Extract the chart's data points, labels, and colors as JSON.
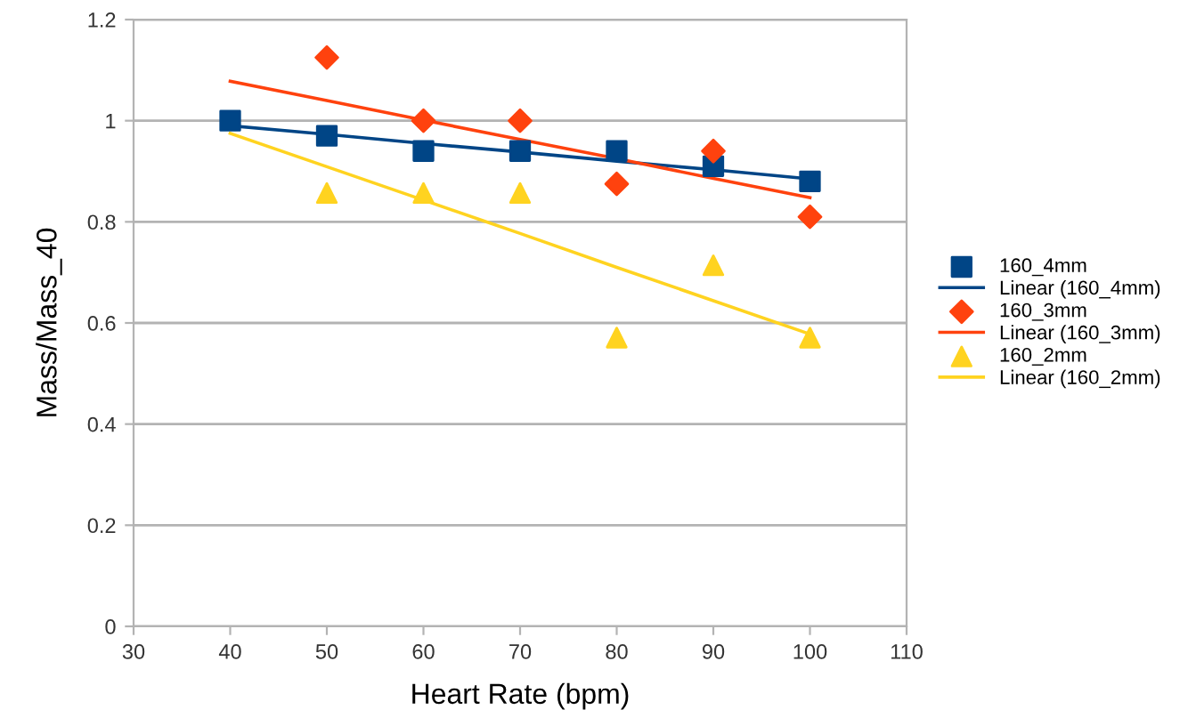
{
  "chart_data": {
    "type": "scatter",
    "xlabel": "Heart Rate (bpm)",
    "ylabel": "Mass/Mass_40",
    "x": [
      40,
      50,
      60,
      70,
      80,
      90,
      100
    ],
    "xlim": [
      30,
      110
    ],
    "xticks": [
      30,
      40,
      50,
      60,
      70,
      80,
      90,
      100,
      110
    ],
    "ylim": [
      0,
      1.2
    ],
    "yticks": [
      0,
      0.2,
      0.4,
      0.6,
      0.8,
      1,
      1.2
    ],
    "grid": "y",
    "legend": "right",
    "series": [
      {
        "name": "160_4mm",
        "marker": "square",
        "color": "#004586",
        "values": [
          1.0,
          0.97,
          0.94,
          0.94,
          0.94,
          0.91,
          0.88
        ]
      },
      {
        "name": "Linear (160_4mm)",
        "type": "line",
        "marker": "none",
        "color": "#004586",
        "values": [
          0.99,
          0.973,
          0.955,
          0.938,
          0.92,
          0.903,
          0.885
        ]
      },
      {
        "name": "160_3mm",
        "marker": "diamond",
        "color": "#ff420e",
        "values": [
          null,
          1.125,
          1.0,
          1.0,
          0.875,
          0.94,
          0.81
        ]
      },
      {
        "name": "Linear (160_3mm)",
        "type": "line",
        "marker": "none",
        "color": "#ff420e",
        "values": [
          1.078,
          1.04,
          1.001,
          0.963,
          0.925,
          0.886,
          0.848
        ]
      },
      {
        "name": "160_2mm",
        "marker": "triangle",
        "color": "#ffd320",
        "values": [
          null,
          0.857,
          0.857,
          0.857,
          0.571,
          0.714,
          0.571
        ]
      },
      {
        "name": "Linear (160_2mm)",
        "type": "line",
        "marker": "none",
        "color": "#ffd320",
        "values": [
          0.975,
          0.909,
          0.843,
          0.777,
          0.71,
          0.644,
          0.578
        ]
      }
    ]
  }
}
